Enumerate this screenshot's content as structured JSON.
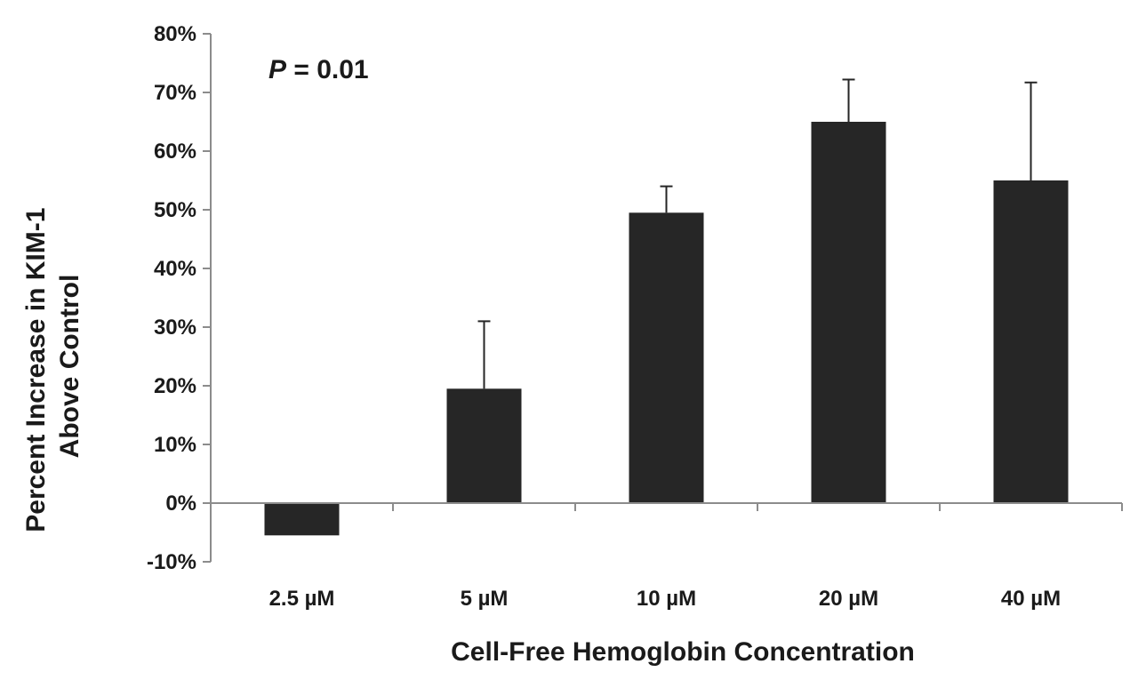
{
  "chart_data": {
    "type": "bar",
    "title": "",
    "xlabel": "Cell-Free Hemoglobin Concentration",
    "ylabel_lines": [
      "Percent Increase in KIM-1",
      "Above Control"
    ],
    "categories": [
      "2.5 µM",
      "5 µM",
      "10 µM",
      "20 µM",
      "40 µM"
    ],
    "values": [
      -5.5,
      19.5,
      49.5,
      65,
      55
    ],
    "error_upper": [
      0,
      11.5,
      4.5,
      7.2,
      16.7
    ],
    "ylim": [
      -10,
      80
    ],
    "yticks": [
      -10,
      0,
      10,
      20,
      30,
      40,
      50,
      60,
      70,
      80
    ],
    "ytick_labels": [
      "-10%",
      "0%",
      "10%",
      "20%",
      "30%",
      "40%",
      "50%",
      "60%",
      "70%",
      "80%"
    ],
    "grid": false,
    "bar_color": "#262626",
    "annotation": {
      "italic": "P",
      "text": " = 0.01"
    }
  }
}
